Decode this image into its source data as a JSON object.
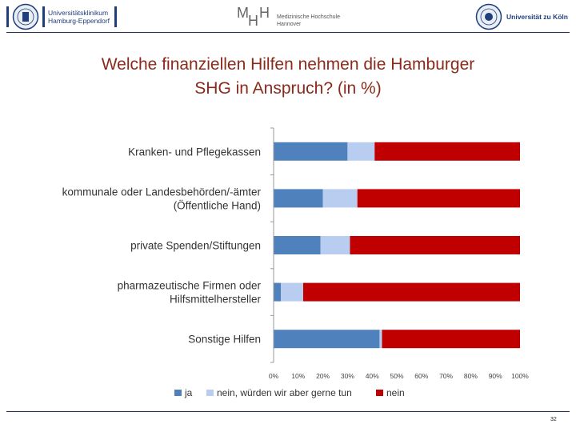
{
  "header": {
    "logo_left_text": "Universitätsklinikum\nHamburg-Eppendorf",
    "logo_mid_text": "Medizinische Hochschule\nHannover",
    "logo_right_text": "Universität zu Köln"
  },
  "chart_data": {
    "type": "bar",
    "orientation": "horizontal",
    "stacked": true,
    "percent": true,
    "title": "Welche finanziellen Hilfen nehmen die Hamburger SHG in Anspruch? (in %)",
    "title_lines": [
      "Welche finanziellen Hilfen nehmen die Hamburger",
      "SHG in Anspruch? (in %)"
    ],
    "categories": [
      "Kranken- und Pflegekassen",
      "kommunale oder Landesbehörden/-ämter (Öffentliche Hand)",
      "private Spenden/Stiftungen",
      "pharmazeutische Firmen oder Hilfsmittelhersteller",
      "Sonstige Hilfen"
    ],
    "category_lines": [
      [
        "Kranken- und Pflegekassen"
      ],
      [
        "kommunale oder Landesbehörden/-ämter",
        "(Öffentliche Hand)"
      ],
      [
        "private Spenden/Stiftungen"
      ],
      [
        "pharmazeutische Firmen oder",
        "Hilfsmittelhersteller"
      ],
      [
        "Sonstige Hilfen"
      ]
    ],
    "series": [
      {
        "name": "ja",
        "color": "#4f81bd",
        "values": [
          30,
          20,
          19,
          3,
          43
        ]
      },
      {
        "name": "nein, würden wir aber gerne tun",
        "color": "#b9cdf0",
        "values": [
          11,
          14,
          12,
          9,
          1
        ]
      },
      {
        "name": "nein",
        "color": "#c00000",
        "values": [
          59,
          66,
          69,
          88,
          56
        ]
      }
    ],
    "xlim": [
      0,
      100
    ],
    "xticks": [
      "0%",
      "10%",
      "20%",
      "30%",
      "40%",
      "50%",
      "60%",
      "70%",
      "80%",
      "90%",
      "100%"
    ],
    "xtick_values": [
      0,
      10,
      20,
      30,
      40,
      50,
      60,
      70,
      80,
      90,
      100
    ],
    "legend_position": "bottom",
    "grid": false
  },
  "footer": {
    "page_number": "32"
  }
}
